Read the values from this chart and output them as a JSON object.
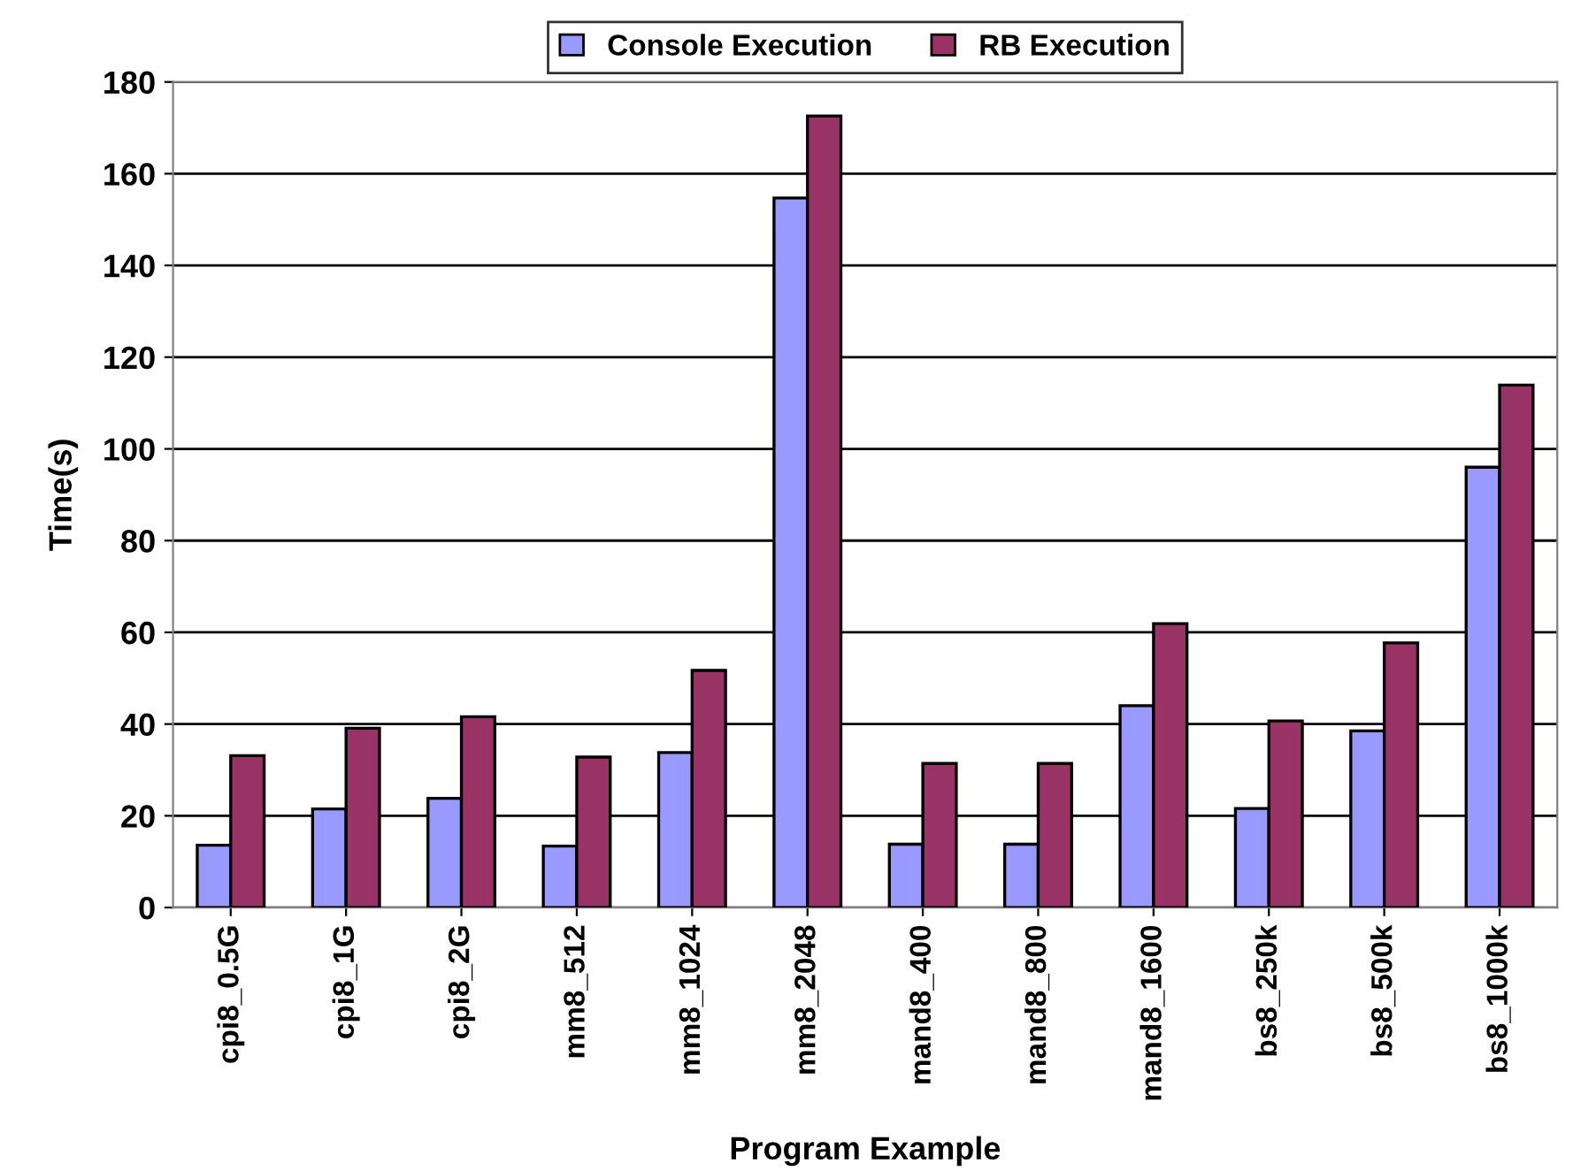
{
  "chart_data": {
    "type": "bar",
    "xlabel": "Program Example",
    "ylabel": "Time(s)",
    "categories": [
      "cpi8_0.5G",
      "cpi8_1G",
      "cpi8_2G",
      "mm8_512",
      "mm8_1024",
      "mm8_2048",
      "mand8_400",
      "mand8_800",
      "mand8_1600",
      "bs8_250k",
      "bs8_500k",
      "bs8_1000k"
    ],
    "series": [
      {
        "name": "Console Execution",
        "color": "#9999ff",
        "values": [
          13.6,
          21.5,
          23.8,
          13.4,
          33.8,
          154.7,
          13.8,
          13.8,
          44,
          21.6,
          38.5,
          96
        ]
      },
      {
        "name": "RB Execution",
        "color": "#993366",
        "values": [
          33.1,
          39.1,
          41.6,
          32.8,
          51.7,
          172.6,
          31.4,
          31.4,
          61.9,
          40.7,
          57.7,
          113.9
        ]
      }
    ],
    "ylim": [
      0,
      180
    ],
    "yticks": [
      0,
      20,
      40,
      60,
      80,
      100,
      120,
      140,
      160,
      180
    ],
    "grid": "y",
    "legend": "top"
  }
}
